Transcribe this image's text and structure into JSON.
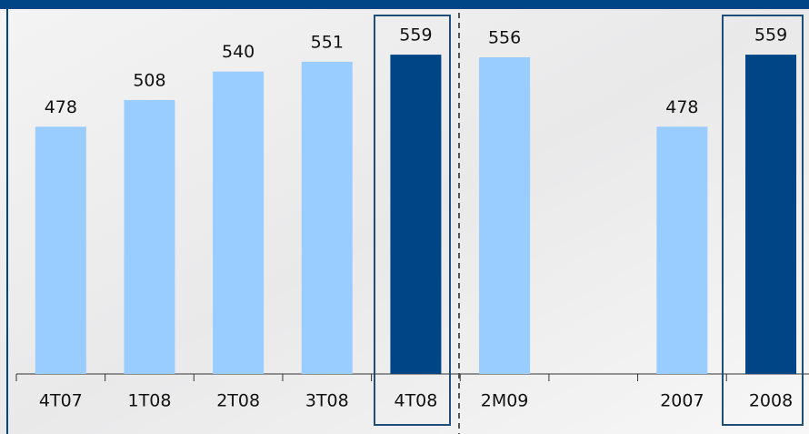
{
  "chart_data": {
    "type": "bar",
    "categories": [
      "4T07",
      "1T08",
      "2T08",
      "3T08",
      "4T08",
      "2M09",
      null,
      "2007",
      "2008"
    ],
    "values": [
      478,
      508,
      540,
      551,
      559,
      556,
      null,
      478,
      559
    ],
    "colors": [
      "#99ccff",
      "#99ccff",
      "#99ccff",
      "#99ccff",
      "#004586",
      "#99ccff",
      "#99ccff",
      "#99ccff",
      "#004586"
    ],
    "ylim": [
      200,
      600
    ]
  }
}
